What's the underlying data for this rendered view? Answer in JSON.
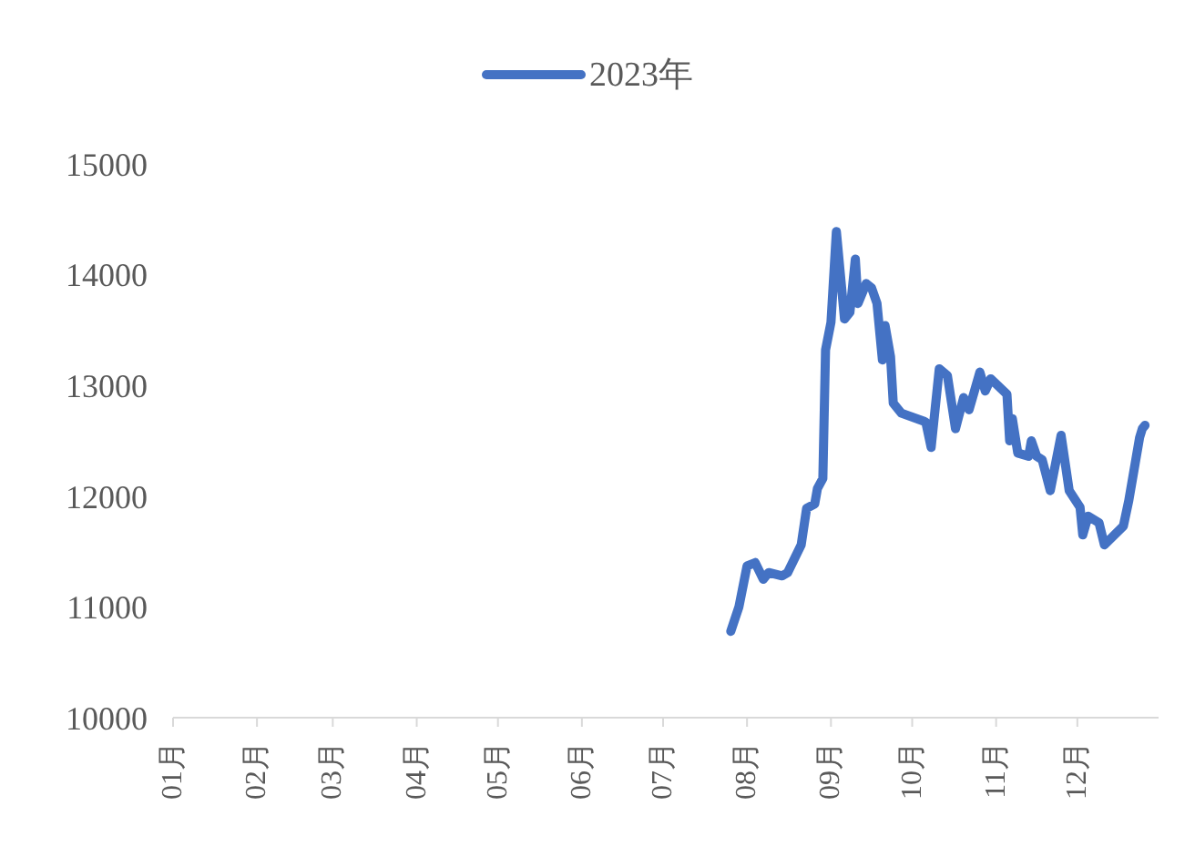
{
  "chart_data": {
    "type": "line",
    "x": [
      "--07-26",
      "--07-29",
      "--08-01",
      "--08-04",
      "--08-07",
      "--08-09",
      "--08-14",
      "--08-16",
      "--08-21",
      "--08-23",
      "--08-26",
      "--08-27",
      "--08-29",
      "--08-30",
      "--09-01",
      "--09-03",
      "--09-06",
      "--09-08",
      "--09-10",
      "--09-11",
      "--09-14",
      "--09-16",
      "--09-18",
      "--09-20",
      "--09-21",
      "--09-23",
      "--09-24",
      "--09-27",
      "--10-06",
      "--10-08",
      "--10-11",
      "--10-14",
      "--10-17",
      "--10-20",
      "--10-22",
      "--10-26",
      "--10-28",
      "--10-30",
      "--11-05",
      "--11-06",
      "--11-07",
      "--11-09",
      "--11-13",
      "--11-14",
      "--11-16",
      "--11-18",
      "--11-21",
      "--11-25",
      "--11-28",
      "--12-02",
      "--12-03",
      "--12-05",
      "--12-09",
      "--12-11",
      "--12-18",
      "--12-20",
      "--12-24",
      "--12-25",
      "--12-26"
    ],
    "series": [
      {
        "name": "2023年",
        "color": "#4472c4",
        "values": [
          10780,
          11000,
          11370,
          11400,
          11250,
          11310,
          11280,
          11310,
          11560,
          11890,
          11930,
          12070,
          12160,
          13320,
          13570,
          14390,
          13600,
          13660,
          14140,
          13740,
          13920,
          13880,
          13740,
          13230,
          13540,
          13260,
          12840,
          12750,
          12670,
          12440,
          13150,
          13090,
          12610,
          12890,
          12780,
          13120,
          12950,
          13060,
          12920,
          12500,
          12700,
          12390,
          12360,
          12500,
          12360,
          12330,
          12050,
          12550,
          12050,
          11900,
          11650,
          11820,
          11760,
          11560,
          11730,
          11960,
          12530,
          12610,
          12640
        ]
      }
    ],
    "xlim": [
      "--01-01",
      "--12-31"
    ],
    "xticks": [
      {
        "value": "--01-01",
        "label": "01月"
      },
      {
        "value": "--02-01",
        "label": "02月"
      },
      {
        "value": "--03-01",
        "label": "03月"
      },
      {
        "value": "--04-01",
        "label": "04月"
      },
      {
        "value": "--05-01",
        "label": "05月"
      },
      {
        "value": "--06-01",
        "label": "06月"
      },
      {
        "value": "--07-01",
        "label": "07月"
      },
      {
        "value": "--08-01",
        "label": "08月"
      },
      {
        "value": "--09-01",
        "label": "09月"
      },
      {
        "value": "--10-01",
        "label": "10月"
      },
      {
        "value": "--11-01",
        "label": "11月"
      },
      {
        "value": "--12-01",
        "label": "12月"
      }
    ],
    "ylim": [
      10000,
      15000
    ],
    "yticks": [
      10000,
      11000,
      12000,
      13000,
      14000,
      15000
    ],
    "grid": false,
    "legend": "top",
    "marker": "none",
    "line_style": "solid"
  }
}
